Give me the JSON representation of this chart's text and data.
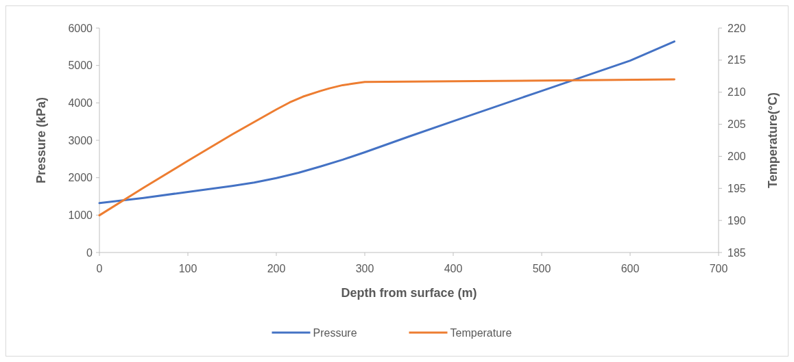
{
  "chart_data": {
    "type": "line",
    "xlabel": "Depth from surface (m)",
    "ylabel": "Pressure (kPa)",
    "y2label": "Temperature(°C)",
    "xlim": [
      0,
      700
    ],
    "xticks": [
      0,
      100,
      200,
      300,
      400,
      500,
      600,
      700
    ],
    "ylim": [
      0,
      6000
    ],
    "yticks": [
      0,
      1000,
      2000,
      3000,
      4000,
      5000,
      6000
    ],
    "y2lim": [
      185,
      220
    ],
    "y2ticks": [
      185,
      190,
      195,
      200,
      205,
      210,
      215,
      220
    ],
    "legend": "bottom",
    "grid": false,
    "marker": "none",
    "line_style": "solid",
    "series": [
      {
        "name": "Pressure",
        "color": "#4472c4",
        "x": [
          0,
          50,
          100,
          150,
          175,
          200,
          225,
          250,
          275,
          300,
          350,
          400,
          500,
          600,
          650
        ],
        "values": [
          1320,
          1460,
          1620,
          1780,
          1870,
          1990,
          2130,
          2300,
          2480,
          2680,
          3100,
          3510,
          4320,
          5130,
          5640
        ]
      },
      {
        "name": "Temperature",
        "color": "#ed7d31",
        "axis": "y2",
        "x": [
          0,
          50,
          100,
          150,
          200,
          215,
          230,
          250,
          260,
          275,
          285,
          300,
          400,
          500,
          650
        ],
        "values": [
          190.8,
          195.1,
          199.3,
          203.4,
          207.3,
          208.4,
          209.3,
          210.2,
          210.6,
          211.1,
          211.3,
          211.6,
          211.7,
          211.8,
          212.0
        ]
      }
    ]
  }
}
